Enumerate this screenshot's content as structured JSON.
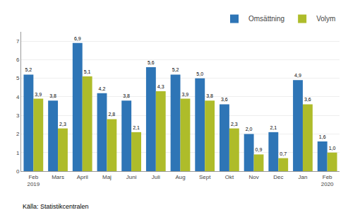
{
  "chart_data": {
    "type": "bar",
    "categories": [
      "Feb\n2019",
      "Mars",
      "April",
      "Maj",
      "Juni",
      "Juli",
      "Aug",
      "Sept",
      "Okt",
      "Nov",
      "Dec",
      "Jan",
      "Feb\n2020"
    ],
    "series": [
      {
        "name": "Omsättning",
        "color": "#2E75B6",
        "values": [
          5.2,
          3.8,
          6.9,
          4.2,
          3.8,
          5.6,
          5.2,
          5.0,
          3.6,
          2.0,
          2.1,
          4.9,
          1.6
        ],
        "value_labels": [
          "5,2",
          "3,8",
          "6,9",
          "4,2",
          "3,8",
          "5,6",
          "5,2",
          "5,0",
          "3,6",
          "2,0",
          "2,1",
          "4,9",
          "1,6"
        ]
      },
      {
        "name": "Volym",
        "color": "#AEBC2A",
        "values": [
          3.9,
          2.3,
          5.1,
          2.8,
          2.1,
          4.3,
          3.9,
          3.8,
          2.3,
          0.9,
          0.7,
          3.6,
          1.0
        ],
        "value_labels": [
          "3,9",
          "2,3",
          "5,1",
          "2,8",
          "2,1",
          "4,3",
          "3,9",
          "3,8",
          "2,3",
          "0,9",
          "0,7",
          "3,6",
          "1,0"
        ]
      }
    ],
    "ylim": [
      0,
      7.5
    ],
    "yticks": [
      0,
      1,
      2,
      3,
      4,
      5,
      6,
      7
    ],
    "grid": true,
    "legend": "upper right",
    "data_labels": true,
    "annotations": [
      "Källa: Statistikcentralen"
    ]
  }
}
